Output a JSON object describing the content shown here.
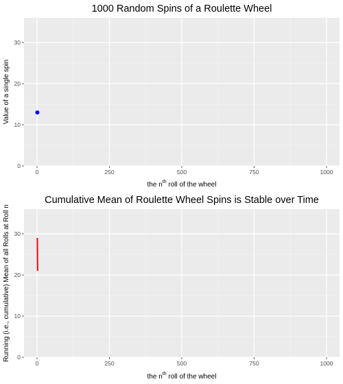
{
  "chart_data": [
    {
      "type": "scatter",
      "title": "1000 Random Spins of a Roulette Wheel",
      "xlabel_pre": "the n",
      "xlabel_sup": "th",
      "xlabel_post": " roll of the wheel",
      "ylabel": "Value of a single spin",
      "xlim": [
        -45,
        1045
      ],
      "ylim": [
        0,
        36
      ],
      "xticks": [
        0,
        250,
        500,
        750,
        1000
      ],
      "yticks": [
        0,
        10,
        20,
        30
      ],
      "grid": true,
      "point_color": "#0000ff",
      "points": [
        {
          "x": 1,
          "y": 13
        }
      ]
    },
    {
      "type": "line",
      "title": "Cumulative Mean of Roulette Wheel Spins is Stable over Time",
      "xlabel_pre": "the n",
      "xlabel_sup": "th",
      "xlabel_post": " roll of the wheel",
      "ylabel": "Running (i.e., cumulative) Mean of all Rolls at Roll n",
      "xlim": [
        -45,
        1045
      ],
      "ylim": [
        0,
        36
      ],
      "xticks": [
        0,
        250,
        500,
        750,
        1000
      ],
      "yticks": [
        0,
        10,
        20,
        30
      ],
      "grid": true,
      "line_color": "#ff0000",
      "line": {
        "x": [
          1,
          2
        ],
        "y": [
          29,
          21
        ]
      }
    }
  ]
}
